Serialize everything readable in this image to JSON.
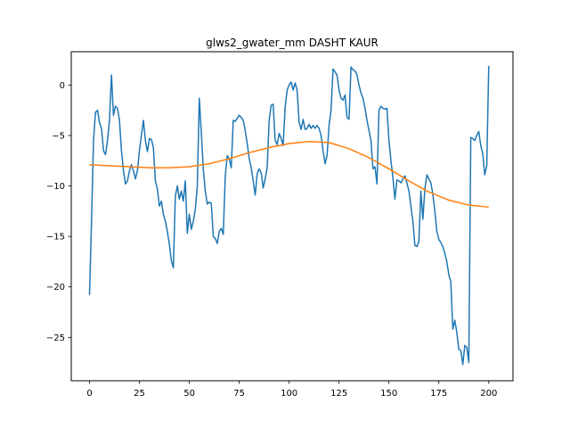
{
  "chart_data": {
    "type": "line",
    "title": "glws2_gwater_mm DASHT KAUR",
    "xlabel": "",
    "ylabel": "",
    "xlim": [
      -9.15,
      212.15
    ],
    "ylim": [
      -29.3,
      3.3
    ],
    "xticks": [
      0,
      25,
      50,
      75,
      100,
      125,
      150,
      175,
      200
    ],
    "yticks": [
      0,
      -5,
      -10,
      -15,
      -20,
      -25
    ],
    "grid": false,
    "series": [
      {
        "color": "#1f77b4",
        "points": [
          [
            0,
            -20.8
          ],
          [
            1,
            -13.5
          ],
          [
            2,
            -5.5
          ],
          [
            3,
            -2.7
          ],
          [
            4,
            -2.5
          ],
          [
            5,
            -3.7
          ],
          [
            6,
            -4.3
          ],
          [
            7,
            -6.5
          ],
          [
            8,
            -6.9
          ],
          [
            9,
            -5.5
          ],
          [
            10,
            -3.5
          ],
          [
            11,
            1.0
          ],
          [
            12,
            -3.0
          ],
          [
            13,
            -2.1
          ],
          [
            14,
            -2.3
          ],
          [
            15,
            -3.5
          ],
          [
            16,
            -6.5
          ],
          [
            17,
            -8.5
          ],
          [
            18,
            -9.8
          ],
          [
            19,
            -9.5
          ],
          [
            20,
            -8.5
          ],
          [
            21,
            -7.9
          ],
          [
            22,
            -8.5
          ],
          [
            23,
            -9.3
          ],
          [
            24,
            -8.5
          ],
          [
            25,
            -6.5
          ],
          [
            26,
            -5.0
          ],
          [
            27,
            -3.5
          ],
          [
            28,
            -5.5
          ],
          [
            29,
            -6.6
          ],
          [
            30,
            -5.3
          ],
          [
            31,
            -5.4
          ],
          [
            32,
            -6.2
          ],
          [
            33,
            -9.5
          ],
          [
            34,
            -10.3
          ],
          [
            35,
            -12.0
          ],
          [
            36,
            -11.5
          ],
          [
            37,
            -12.8
          ],
          [
            38,
            -13.5
          ],
          [
            39,
            -14.5
          ],
          [
            40,
            -15.8
          ],
          [
            41,
            -17.4
          ],
          [
            42,
            -18.1
          ],
          [
            43,
            -11.0
          ],
          [
            44,
            -10.0
          ],
          [
            45,
            -11.3
          ],
          [
            46,
            -10.5
          ],
          [
            47,
            -11.5
          ],
          [
            48,
            -9.5
          ],
          [
            49,
            -14.7
          ],
          [
            50,
            -12.8
          ],
          [
            51,
            -14.3
          ],
          [
            52,
            -13.5
          ],
          [
            53,
            -12.3
          ],
          [
            54,
            -10.0
          ],
          [
            55,
            -1.3
          ],
          [
            56,
            -4.7
          ],
          [
            57,
            -8.3
          ],
          [
            58,
            -10.5
          ],
          [
            59,
            -11.8
          ],
          [
            60,
            -11.6
          ],
          [
            61,
            -11.7
          ],
          [
            62,
            -15.0
          ],
          [
            63,
            -15.2
          ],
          [
            64,
            -15.7
          ],
          [
            65,
            -14.5
          ],
          [
            66,
            -14.2
          ],
          [
            67,
            -14.8
          ],
          [
            68,
            -9.0
          ],
          [
            69,
            -7.0
          ],
          [
            70,
            -7.3
          ],
          [
            71,
            -8.2
          ],
          [
            72,
            -3.5
          ],
          [
            73,
            -3.6
          ],
          [
            74,
            -3.3
          ],
          [
            75,
            -3.0
          ],
          [
            76,
            -3.2
          ],
          [
            77,
            -3.5
          ],
          [
            78,
            -4.5
          ],
          [
            79,
            -5.8
          ],
          [
            80,
            -7.3
          ],
          [
            81,
            -8.2
          ],
          [
            82,
            -9.5
          ],
          [
            83,
            -10.9
          ],
          [
            84,
            -8.8
          ],
          [
            85,
            -8.3
          ],
          [
            86,
            -8.7
          ],
          [
            87,
            -10.2
          ],
          [
            88,
            -9.3
          ],
          [
            89,
            -8.2
          ],
          [
            90,
            -3.5
          ],
          [
            91,
            -2.0
          ],
          [
            92,
            -1.9
          ],
          [
            93,
            -5.5
          ],
          [
            94,
            -5.9
          ],
          [
            95,
            -4.8
          ],
          [
            96,
            -5.3
          ],
          [
            97,
            -6.0
          ],
          [
            98,
            -2.2
          ],
          [
            99,
            -0.5
          ],
          [
            100,
            0.0
          ],
          [
            101,
            0.3
          ],
          [
            102,
            -0.5
          ],
          [
            103,
            0.2
          ],
          [
            104,
            -0.5
          ],
          [
            105,
            -3.7
          ],
          [
            106,
            -4.4
          ],
          [
            107,
            -3.4
          ],
          [
            108,
            -4.4
          ],
          [
            109,
            -4.3
          ],
          [
            110,
            -3.9
          ],
          [
            111,
            -4.3
          ],
          [
            112,
            -4.0
          ],
          [
            113,
            -4.3
          ],
          [
            114,
            -4.0
          ],
          [
            115,
            -4.3
          ],
          [
            116,
            -5.0
          ],
          [
            117,
            -6.5
          ],
          [
            118,
            -7.8
          ],
          [
            119,
            -7.0
          ],
          [
            120,
            -4.0
          ],
          [
            121,
            -2.5
          ],
          [
            122,
            1.6
          ],
          [
            123,
            1.3
          ],
          [
            124,
            1.0
          ],
          [
            125,
            -0.5
          ],
          [
            126,
            -1.3
          ],
          [
            127,
            -1.5
          ],
          [
            128,
            -1.0
          ],
          [
            129,
            -3.2
          ],
          [
            130,
            -3.4
          ],
          [
            131,
            1.8
          ],
          [
            132,
            1.5
          ],
          [
            133,
            1.4
          ],
          [
            134,
            1.0
          ],
          [
            135,
            0.0
          ],
          [
            136,
            -0.8
          ],
          [
            137,
            -1.3
          ],
          [
            138,
            -2.3
          ],
          [
            139,
            -3.5
          ],
          [
            140,
            -4.5
          ],
          [
            141,
            -5.5
          ],
          [
            142,
            -8.3
          ],
          [
            143,
            -8.1
          ],
          [
            144,
            -9.8
          ],
          [
            145,
            -2.5
          ],
          [
            146,
            -2.1
          ],
          [
            147,
            -2.3
          ],
          [
            148,
            -2.4
          ],
          [
            149,
            -2.3
          ],
          [
            150,
            -5.5
          ],
          [
            151,
            -7.5
          ],
          [
            152,
            -9.2
          ],
          [
            153,
            -11.3
          ],
          [
            154,
            -9.4
          ],
          [
            155,
            -9.5
          ],
          [
            156,
            -9.7
          ],
          [
            157,
            -9.3
          ],
          [
            158,
            -9.0
          ],
          [
            159,
            -9.7
          ],
          [
            160,
            -10.5
          ],
          [
            161,
            -12.0
          ],
          [
            162,
            -13.5
          ],
          [
            163,
            -15.9
          ],
          [
            164,
            -16.0
          ],
          [
            165,
            -15.5
          ],
          [
            166,
            -10.5
          ],
          [
            167,
            -13.3
          ],
          [
            168,
            -10.3
          ],
          [
            169,
            -8.9
          ],
          [
            170,
            -9.3
          ],
          [
            171,
            -9.7
          ],
          [
            172,
            -10.8
          ],
          [
            173,
            -12.5
          ],
          [
            174,
            -14.5
          ],
          [
            175,
            -15.3
          ],
          [
            176,
            -15.6
          ],
          [
            177,
            -16.0
          ],
          [
            178,
            -16.7
          ],
          [
            179,
            -17.5
          ],
          [
            180,
            -18.8
          ],
          [
            181,
            -19.5
          ],
          [
            182,
            -24.2
          ],
          [
            183,
            -23.3
          ],
          [
            184,
            -24.5
          ],
          [
            185,
            -26.2
          ],
          [
            186,
            -26.3
          ],
          [
            187,
            -27.7
          ],
          [
            188,
            -25.8
          ],
          [
            189,
            -26.0
          ],
          [
            190,
            -27.5
          ],
          [
            191,
            -5.2
          ],
          [
            192,
            -5.3
          ],
          [
            193,
            -5.5
          ],
          [
            194,
            -5.0
          ],
          [
            195,
            -4.6
          ],
          [
            196,
            -6.0
          ],
          [
            197,
            -6.8
          ],
          [
            198,
            -8.9
          ],
          [
            199,
            -8.0
          ],
          [
            200,
            1.9
          ]
        ]
      },
      {
        "color": "#ff7f0e",
        "points": [
          [
            0,
            -7.9
          ],
          [
            10,
            -8.0
          ],
          [
            20,
            -8.1
          ],
          [
            30,
            -8.2
          ],
          [
            40,
            -8.2
          ],
          [
            50,
            -8.1
          ],
          [
            60,
            -7.8
          ],
          [
            70,
            -7.3
          ],
          [
            80,
            -6.7
          ],
          [
            90,
            -6.2
          ],
          [
            100,
            -5.8
          ],
          [
            110,
            -5.6
          ],
          [
            120,
            -5.7
          ],
          [
            130,
            -6.3
          ],
          [
            140,
            -7.2
          ],
          [
            150,
            -8.3
          ],
          [
            160,
            -9.5
          ],
          [
            170,
            -10.6
          ],
          [
            180,
            -11.4
          ],
          [
            190,
            -11.9
          ],
          [
            200,
            -12.1
          ]
        ]
      }
    ]
  }
}
